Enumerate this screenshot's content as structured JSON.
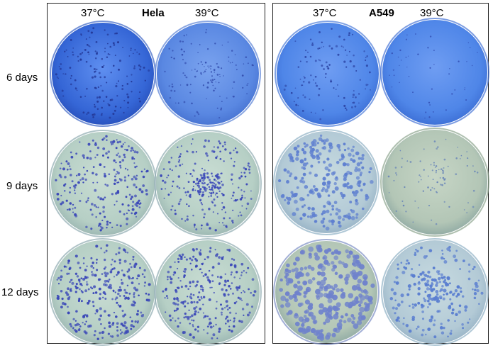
{
  "panels": [
    {
      "title": "Hela",
      "col_left": "37°C",
      "col_right": "39°C"
    },
    {
      "title": "A549",
      "col_left": "37°C",
      "col_right": "39°C"
    }
  ],
  "rows": [
    "6 days",
    "9 days",
    "12 days"
  ],
  "colors": {
    "border": "#222222",
    "plate_blue_dark": "#3f6fd8",
    "plate_blue_light": "#5b8ee6",
    "plate_agar": "#b4cfc4",
    "colony": "#3a47b8"
  }
}
